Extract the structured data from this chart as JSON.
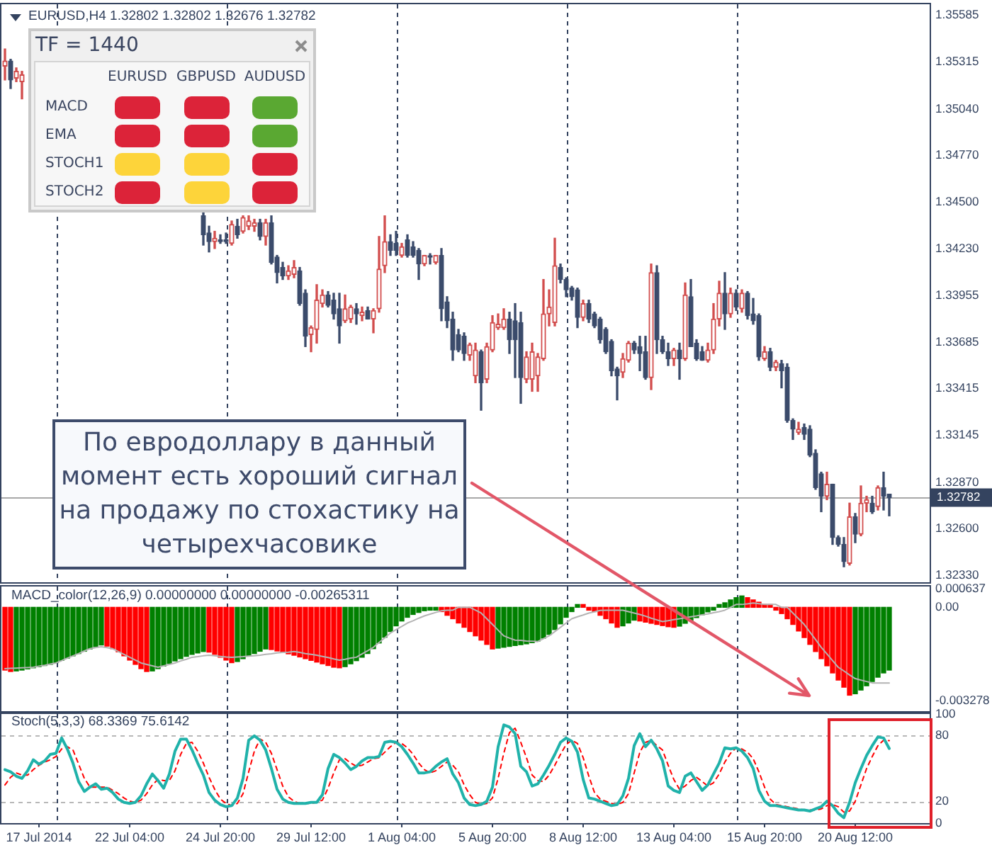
{
  "chart_data": [
    {
      "type": "candlestick",
      "title": "EURUSD,H4 1.32802 1.32802 1.32676 1.32782",
      "categories": [
        null,
        null,
        null,
        null,
        null,
        null,
        null,
        null,
        null,
        null,
        null,
        null,
        null,
        null,
        null,
        null,
        null,
        null,
        null,
        null,
        null,
        null,
        null,
        null,
        null,
        null,
        null,
        null,
        null,
        null,
        null,
        null,
        null,
        null,
        null,
        null,
        null,
        null,
        null,
        null,
        null,
        null,
        null,
        null,
        null,
        null,
        null,
        null,
        null,
        null,
        null,
        null,
        null,
        null,
        null,
        null,
        null,
        null,
        null,
        null,
        null,
        null,
        null,
        null,
        null,
        null,
        null,
        null,
        null,
        null,
        null,
        null,
        null,
        null,
        null,
        null,
        null,
        null,
        null,
        null,
        null,
        null,
        null,
        null,
        null,
        null,
        null,
        null,
        null,
        null,
        null,
        null,
        null,
        null,
        null,
        null,
        null,
        null,
        null,
        null,
        null,
        null,
        null,
        null,
        null,
        null,
        null,
        null,
        null,
        null,
        null,
        null,
        null,
        null,
        null,
        null,
        null,
        null,
        null,
        null,
        null,
        null,
        null,
        null,
        null,
        null,
        null,
        null,
        null,
        null,
        null,
        null,
        null,
        null,
        null,
        null,
        null,
        null,
        null,
        null,
        null,
        null,
        null,
        null,
        null,
        null,
        null,
        null,
        null,
        null,
        null,
        null,
        null,
        null,
        null,
        null,
        null
      ],
      "ohlc": [
        [
          1.3529,
          1.3539,
          1.3521,
          1.3532
        ],
        [
          1.3532,
          1.3533,
          1.3516,
          1.3521
        ],
        [
          1.3522,
          1.3528,
          1.352,
          1.3526
        ],
        [
          1.352,
          1.3526,
          1.351,
          1.3524
        ],
        null,
        null,
        null,
        null,
        null,
        null,
        null,
        null,
        null,
        null,
        null,
        null,
        null,
        null,
        null,
        null,
        null,
        null,
        null,
        null,
        null,
        null,
        null,
        null,
        null,
        null,
        null,
        null,
        null,
        null,
        null,
        [
          1.3442,
          1.3444,
          1.3425,
          1.3431
        ],
        [
          1.3432,
          1.3436,
          1.3421,
          1.3427
        ],
        [
          1.3427,
          1.3433,
          1.3423,
          1.3429
        ],
        [
          1.3428,
          1.3431,
          1.3426,
          1.3427
        ],
        [
          1.3428,
          1.3432,
          1.3426,
          1.3427
        ],
        [
          1.3426,
          1.3439,
          1.3425,
          1.3437
        ],
        [
          1.3436,
          1.344,
          1.3429,
          1.3431
        ],
        [
          1.3433,
          1.3442,
          1.3432,
          1.3441
        ],
        [
          1.3436,
          1.3442,
          1.3434,
          1.3439
        ],
        [
          1.3436,
          1.344,
          1.3433,
          1.3438
        ],
        [
          1.3438,
          1.344,
          1.3428,
          1.343
        ],
        [
          1.343,
          1.344,
          1.3425,
          1.3438
        ],
        [
          1.3438,
          1.3442,
          1.3414,
          1.3415
        ],
        [
          1.3418,
          1.3419,
          1.3403,
          1.3409
        ],
        [
          1.3412,
          1.3415,
          1.3405,
          1.3407
        ],
        [
          1.3407,
          1.3413,
          1.3405,
          1.341
        ],
        [
          1.3408,
          1.3416,
          1.3406,
          1.3412
        ],
        [
          1.341,
          1.3412,
          1.339,
          1.3391
        ],
        [
          1.3397,
          1.3399,
          1.3366,
          1.3372
        ],
        [
          1.3373,
          1.3378,
          1.3363,
          1.3377
        ],
        [
          1.3376,
          1.3402,
          1.3368,
          1.3393
        ],
        [
          1.3391,
          1.3399,
          1.3389,
          1.3396
        ],
        [
          1.3396,
          1.3398,
          1.3389,
          1.339
        ],
        [
          1.3393,
          1.3397,
          1.3382,
          1.3385
        ],
        [
          1.3388,
          1.3397,
          1.3368,
          1.3378
        ],
        [
          1.3381,
          1.3396,
          1.338,
          1.3388
        ],
        [
          1.3382,
          1.339,
          1.338,
          1.3389
        ],
        [
          1.3388,
          1.3391,
          1.3379,
          1.3385
        ],
        [
          1.3384,
          1.3389,
          1.3381,
          1.3386
        ],
        [
          1.3387,
          1.3389,
          1.3382,
          1.3382
        ],
        [
          1.3382,
          1.3388,
          1.3374,
          1.3387
        ],
        [
          1.3388,
          1.343,
          1.3386,
          1.3411
        ],
        [
          1.3413,
          1.3442,
          1.3409,
          1.3427
        ],
        [
          1.3427,
          1.3431,
          1.3419,
          1.3422
        ],
        [
          1.3426,
          1.3433,
          1.3419,
          1.3422
        ],
        [
          1.3419,
          1.3426,
          1.3418,
          1.3424
        ],
        [
          1.3428,
          1.3431,
          1.3418,
          1.3419
        ],
        [
          1.3424,
          1.3427,
          1.3418,
          1.3419
        ],
        [
          1.3422,
          1.3423,
          1.3405,
          1.3414
        ],
        [
          1.3414,
          1.3419,
          1.3413,
          1.3419
        ],
        [
          1.3418,
          1.342,
          1.3414,
          1.3418
        ],
        [
          1.3415,
          1.3419,
          1.3414,
          1.3419
        ],
        [
          1.3419,
          1.3423,
          1.3381,
          1.3388
        ],
        [
          1.3392,
          1.3395,
          1.3377,
          1.3381
        ],
        [
          1.3382,
          1.3386,
          1.3358,
          1.3364
        ],
        [
          1.3373,
          1.3376,
          1.3363,
          1.3364
        ],
        [
          1.3372,
          1.3374,
          1.3358,
          1.3362
        ],
        [
          1.3361,
          1.3368,
          1.3358,
          1.3367
        ],
        [
          1.3349,
          1.3368,
          1.3345,
          1.3364
        ],
        [
          1.3363,
          1.3364,
          1.3329,
          1.3345
        ],
        [
          1.3347,
          1.3368,
          1.3345,
          1.3366
        ],
        [
          1.3364,
          1.3384,
          1.3363,
          1.338
        ],
        [
          1.3377,
          1.3385,
          1.3376,
          1.3379
        ],
        [
          1.3377,
          1.3388,
          1.3376,
          1.3382
        ],
        [
          1.3382,
          1.3386,
          1.3362,
          1.337
        ],
        [
          1.3381,
          1.3391,
          1.3348,
          1.337
        ],
        [
          1.338,
          1.3386,
          1.3333,
          1.3348
        ],
        [
          1.3347,
          1.3363,
          1.3345,
          1.336
        ],
        [
          1.3347,
          1.3368,
          1.334,
          1.3363
        ],
        [
          1.3349,
          1.3362,
          1.334,
          1.336
        ],
        [
          1.3359,
          1.3405,
          1.3358,
          1.3385
        ],
        [
          1.3385,
          1.3399,
          1.3378,
          1.3389
        ],
        [
          1.338,
          1.3429,
          1.3378,
          1.3413
        ],
        [
          1.3412,
          1.3414,
          1.3403,
          1.3405
        ],
        [
          1.3405,
          1.3406,
          1.3395,
          1.3399
        ],
        [
          1.34,
          1.3401,
          1.3393,
          1.3395
        ],
        [
          1.3399,
          1.34,
          1.3377,
          1.3383
        ],
        [
          1.3383,
          1.3393,
          1.3381,
          1.3391
        ],
        [
          1.3391,
          1.3393,
          1.338,
          1.3382
        ],
        [
          1.3385,
          1.3386,
          1.3377,
          1.3378
        ],
        [
          1.3382,
          1.3383,
          1.3368,
          1.337
        ],
        [
          1.3376,
          1.3377,
          1.3362,
          1.3363
        ],
        [
          1.3369,
          1.337,
          1.3349,
          1.3352
        ],
        [
          1.3353,
          1.3354,
          1.3335,
          1.3349
        ],
        [
          1.3351,
          1.3362,
          1.3348,
          1.3359
        ],
        [
          1.3358,
          1.3369,
          1.3357,
          1.3368
        ],
        [
          1.3368,
          1.3369,
          1.3362,
          1.3364
        ],
        [
          1.3366,
          1.3372,
          1.3352,
          1.3362
        ],
        [
          1.3363,
          1.3372,
          1.3347,
          1.3348
        ],
        [
          1.3348,
          1.3414,
          1.3341,
          1.3409
        ],
        [
          1.3409,
          1.3413,
          1.3362,
          1.337
        ],
        [
          1.337,
          1.3372,
          1.3362,
          1.3363
        ],
        [
          1.3363,
          1.3368,
          1.3355,
          1.3359
        ],
        [
          1.3359,
          1.3365,
          1.3355,
          1.3364
        ],
        [
          1.3364,
          1.3368,
          1.3347,
          1.3359
        ],
        [
          1.3359,
          1.3403,
          1.3358,
          1.3396
        ],
        [
          1.3395,
          1.3405,
          1.3366,
          1.3366
        ],
        [
          1.3368,
          1.337,
          1.3358,
          1.3359
        ],
        [
          1.3363,
          1.3366,
          1.3358,
          1.3358
        ],
        [
          1.3358,
          1.3368,
          1.3357,
          1.3364
        ],
        [
          1.3364,
          1.3391,
          1.3362,
          1.3382
        ],
        [
          1.3382,
          1.3404,
          1.3378,
          1.3397
        ],
        [
          1.3397,
          1.3409,
          1.3376,
          1.3385
        ],
        [
          1.3385,
          1.34,
          1.3383,
          1.3397
        ],
        [
          1.3397,
          1.3399,
          1.3387,
          1.3389
        ],
        [
          1.3388,
          1.3399,
          1.3386,
          1.3397
        ],
        [
          1.3397,
          1.3398,
          1.3382,
          1.3384
        ],
        [
          1.3385,
          1.3394,
          1.3379,
          1.3381
        ],
        [
          1.3384,
          1.3385,
          1.3358,
          1.336
        ],
        [
          1.3359,
          1.3366,
          1.3358,
          1.3363
        ],
        [
          1.3363,
          1.3365,
          1.3352,
          1.3354
        ],
        [
          1.3354,
          1.3358,
          1.3352,
          1.3357
        ],
        [
          1.3356,
          1.3358,
          1.3342,
          1.3352
        ],
        [
          1.3354,
          1.3356,
          1.3322,
          1.3323
        ],
        [
          1.3323,
          1.3324,
          1.3312,
          1.3318
        ],
        [
          1.3316,
          1.3322,
          1.3315,
          1.3318
        ],
        [
          1.3319,
          1.3321,
          1.3312,
          1.3315
        ],
        [
          1.3318,
          1.332,
          1.3302,
          1.3303
        ],
        [
          1.3304,
          1.3306,
          1.3283,
          1.3284
        ],
        [
          1.3292,
          1.3293,
          1.327,
          1.3279
        ],
        [
          1.3279,
          1.3293,
          1.3277,
          1.3286
        ],
        [
          1.3286,
          1.3286,
          1.3251,
          1.3255
        ],
        [
          1.3255,
          1.3256,
          1.325,
          1.3251
        ],
        [
          1.3251,
          1.3255,
          1.3238,
          1.3241
        ],
        [
          1.324,
          1.3275,
          1.3239,
          1.3267
        ],
        [
          1.3267,
          1.3269,
          1.3252,
          1.3257
        ],
        [
          1.3257,
          1.3285,
          1.3256,
          1.3275
        ],
        [
          1.3275,
          1.3279,
          1.327,
          1.3277
        ],
        [
          1.3275,
          1.3279,
          1.3269,
          1.327
        ],
        [
          1.3273,
          1.3285,
          1.3271,
          1.3284
        ],
        [
          1.3284,
          1.3293,
          1.3271,
          1.3279
        ],
        [
          1.32802,
          1.32802,
          1.32676,
          1.32782
        ]
      ],
      "colors": [
        "#d24d4d",
        "#3b4b6b",
        "#d24d4d",
        "#d24d4d",
        null,
        null,
        null,
        null,
        null,
        null,
        null,
        null,
        null,
        null,
        null,
        null,
        null,
        null,
        null,
        null,
        null,
        null,
        null,
        null,
        null,
        null,
        null,
        null,
        null,
        null,
        null,
        null,
        null,
        null,
        null,
        "#3b4b6b",
        "#3b4b6b",
        "#d24d4d",
        "#3b4b6b",
        "#3b4b6b",
        "#d24d4d",
        "#3b4b6b",
        "#d24d4d",
        "#d24d4d",
        "#d24d4d",
        "#3b4b6b",
        "#d24d4d",
        "#3b4b6b",
        "#3b4b6b",
        "#3b4b6b",
        "#d24d4d",
        "#d24d4d",
        "#3b4b6b",
        "#3b4b6b",
        "#d24d4d",
        "#d24d4d",
        "#d24d4d",
        "#3b4b6b",
        "#3b4b6b",
        "#3b4b6b",
        "#d24d4d",
        "#d24d4d",
        "#3b4b6b",
        "#d24d4d",
        "#3b4b6b",
        "#d24d4d",
        "#d24d4d",
        "#d24d4d",
        "#3b4b6b",
        "#3b4b6b",
        "#d24d4d",
        "#3b4b6b",
        "#3b4b6b",
        "#3b4b6b",
        "#d24d4d",
        "#3b4b6b",
        "#d24d4d",
        "#3b4b6b",
        "#3b4b6b",
        "#3b4b6b",
        "#3b4b6b",
        "#3b4b6b",
        "#d24d4d",
        "#d24d4d",
        "#3b4b6b",
        "#d24d4d",
        "#d24d4d",
        "#d24d4d",
        "#d24d4d",
        "#3b4b6b",
        "#3b4b6b",
        "#3b4b6b",
        "#d24d4d",
        "#d24d4d",
        "#d24d4d",
        "#d24d4d",
        "#d24d4d",
        "#d24d4d",
        "#3b4b6b",
        "#3b4b6b",
        "#3b4b6b",
        "#3b4b6b",
        "#d24d4d",
        "#3b4b6b",
        "#3b4b6b",
        "#3b4b6b",
        "#3b4b6b",
        "#3b4b6b",
        "#3b4b6b",
        "#d24d4d",
        "#d24d4d",
        "#3b4b6b",
        "#3b4b6b",
        "#3b4b6b",
        "#d24d4d",
        "#3b4b6b",
        "#3b4b6b",
        "#3b4b6b",
        "#d24d4d",
        "#3b4b6b",
        "#d24d4d",
        "#3b4b6b",
        "#3b4b6b",
        "#3b4b6b",
        "#d24d4d",
        "#d24d4d",
        "#d24d4d",
        "#3b4b6b",
        "#d24d4d",
        "#3b4b6b",
        "#d24d4d",
        "#3b4b6b",
        "#3b4b6b",
        "#3b4b6b",
        "#d24d4d",
        "#3b4b6b",
        "#d24d4d",
        "#3b4b6b",
        "#3b4b6b",
        "#3b4b6b",
        "#d24d4d",
        "#3b4b6b",
        "#3b4b6b",
        "#3b4b6b",
        "#3b4b6b",
        "#d24d4d",
        "#3b4b6b",
        "#3b4b6b",
        "#3b4b6b",
        "#d24d4d",
        "#3b4b6b",
        "#d24d4d",
        "#d24d4d",
        "#3b4b6b",
        "#d24d4d",
        "#3b4b6b",
        "#3b4b6b"
      ],
      "ylim": [
        1.3229,
        1.3565
      ],
      "yticks": [
        {
          "value": 1.3233,
          "label": "1.32330"
        },
        {
          "value": 1.326,
          "label": "1.32600"
        },
        {
          "value": 1.3287,
          "label": "1.32870"
        },
        1.33145,
        1.33415,
        1.33685,
        1.33955,
        {
          "value": 1.3423,
          "label": "1.34230"
        },
        {
          "value": 1.345,
          "label": "1.34500"
        },
        {
          "value": 1.3477,
          "label": "1.34770"
        },
        {
          "value": 1.3504,
          "label": "1.35040"
        },
        1.35315,
        1.35585
      ],
      "ref_lines": [
        {
          "axis": "y",
          "value": 1.32782,
          "label": "1.32782",
          "color": "#a8a8a8"
        }
      ],
      "annotations": [
        "По евродоллару в данный момент есть хороший сигнал на продажу по стохастику на четырехчасовике"
      ]
    },
    {
      "type": "other",
      "title": "TF = 1440",
      "categories": [
        "EURUSD",
        "GBPUSD",
        "AUDUSD"
      ],
      "y_categories": [
        "MACD",
        "EMA",
        "STOCH1",
        "STOCH2"
      ],
      "colors": [
        "#dc2339",
        "#dc2339",
        "#5aa832",
        "#dc2339",
        "#dc2339",
        "#5aa832",
        "#fdd43a",
        "#fdd43a",
        "#dc2339",
        "#dc2339",
        "#fdd43a",
        "#dc2339"
      ]
    },
    {
      "type": "bar",
      "title": "MACD_color(12,26,9) 0.00000000 0.00000000 -0.00265311",
      "categories": [
        null,
        null,
        null,
        null,
        null,
        null,
        null,
        null,
        null,
        null,
        null,
        null,
        null,
        null,
        null,
        null,
        null,
        null,
        null,
        null,
        null,
        null,
        null,
        null,
        null,
        null,
        null,
        null,
        null,
        null,
        null,
        null,
        null,
        null,
        null,
        null,
        null,
        null,
        null,
        null,
        null,
        null,
        null,
        null,
        null,
        null,
        null,
        null,
        null,
        null,
        null,
        null,
        null,
        null,
        null,
        null,
        null,
        null,
        null,
        null,
        null,
        null,
        null,
        null,
        null,
        null,
        null,
        null,
        null,
        null,
        null,
        null,
        null,
        null,
        null,
        null,
        null,
        null,
        null,
        null,
        null,
        null,
        null,
        null,
        null,
        null,
        null,
        null,
        null,
        null,
        null,
        null,
        null,
        null,
        null,
        null,
        null,
        null,
        null,
        null,
        null,
        null,
        null,
        null,
        null,
        null,
        null,
        null,
        null,
        null,
        null,
        null,
        null,
        null,
        null,
        null,
        null,
        null,
        null,
        null,
        null,
        null,
        null,
        null,
        null,
        null,
        null,
        null,
        null,
        null,
        null,
        null,
        null,
        null,
        null,
        null,
        null,
        null,
        null,
        null,
        null,
        null,
        null,
        null,
        null,
        null,
        null,
        null,
        null,
        null,
        null,
        null,
        null,
        null,
        null,
        null,
        null
      ],
      "series": [
        {
          "values": [
            -0.0022,
            -0.00225,
            -0.00223,
            -0.0022,
            -0.00216,
            -0.00212,
            -0.00208,
            -0.00204,
            -0.002,
            -0.00194,
            -0.00186,
            -0.00178,
            -0.0017,
            -0.00162,
            -0.00154,
            -0.00146,
            -0.00138,
            -0.00132,
            -0.00136,
            -0.00145,
            -0.00156,
            -0.0017,
            -0.00185,
            -0.002,
            -0.00215,
            -0.00225,
            -0.00223,
            -0.00215,
            -0.00206,
            -0.00197,
            -0.00188,
            -0.0018,
            -0.00172,
            -0.00165,
            -0.0016,
            -0.00155,
            -0.00157,
            -0.00165,
            -0.00175,
            -0.00185,
            -0.00194,
            -0.0019,
            -0.0018,
            -0.0017,
            -0.00162,
            -0.00154,
            -0.00146,
            -0.00148,
            -0.00153,
            -0.00158,
            -0.00163,
            -0.00168,
            -0.00174,
            -0.0018,
            -0.00186,
            -0.00192,
            -0.00198,
            -0.00204,
            -0.0021,
            -0.00212,
            -0.00208,
            -0.00198,
            -0.00187,
            -0.00175,
            -0.00162,
            -0.00145,
            -0.00125,
            -0.00105,
            -0.00085,
            -0.00065,
            -0.00048,
            -0.00035,
            -0.00025,
            -0.00018,
            -0.00012,
            -0.0001,
            -0.0001,
            -0.00015,
            -0.00028,
            -0.0004,
            -0.00055,
            -0.0007,
            -0.00085,
            -0.001,
            -0.00115,
            -0.0013,
            -0.00146,
            -0.00143,
            -0.0014,
            -0.00137,
            -0.00134,
            -0.00131,
            -0.00128,
            -0.00124,
            -0.00118,
            -0.00108,
            -0.00095,
            -0.00078,
            -0.00058,
            -0.00035,
            -0.00015,
            0.0001,
            0.0001,
            -0.0001,
            -0.00015,
            -0.00028,
            -0.0004,
            -0.00055,
            -0.0007,
            -0.00065,
            -0.00055,
            -0.00045,
            -0.00048,
            -0.00052,
            -0.00056,
            -0.0006,
            -0.00064,
            -0.00068,
            -0.0007,
            -0.00066,
            -0.00056,
            -0.00046,
            -0.00036,
            -0.00026,
            -0.00016,
            -0.0001,
            0.0001,
            0.00016,
            0.00026,
            0.00034,
            0.0004,
            0.00034,
            0.00026,
            0.00018,
            0.0001,
            0.0001,
            -0.0001,
            -0.00022,
            -0.0004,
            -0.0006,
            -0.00083,
            -0.00106,
            -0.0013,
            -0.00155,
            -0.0018,
            -0.00205,
            -0.0023,
            -0.00255,
            -0.0028,
            -0.00308,
            -0.00303,
            -0.0029,
            -0.00275,
            -0.0026,
            -0.00245,
            -0.0023,
            -0.0022
          ],
          "colors": [
            "#ff0000",
            "#ff0000",
            "#008000",
            "#008000",
            "#008000",
            "#008000",
            "#008000",
            "#008000",
            "#008000",
            "#008000",
            "#008000",
            "#008000",
            "#008000",
            "#008000",
            "#008000",
            "#008000",
            "#008000",
            "#008000",
            "#ff0000",
            "#ff0000",
            "#ff0000",
            "#ff0000",
            "#ff0000",
            "#ff0000",
            "#ff0000",
            "#ff0000",
            "#008000",
            "#008000",
            "#008000",
            "#008000",
            "#008000",
            "#008000",
            "#008000",
            "#008000",
            "#008000",
            "#008000",
            "#ff0000",
            "#ff0000",
            "#ff0000",
            "#ff0000",
            "#ff0000",
            "#008000",
            "#008000",
            "#008000",
            "#008000",
            "#008000",
            "#008000",
            "#ff0000",
            "#ff0000",
            "#ff0000",
            "#ff0000",
            "#ff0000",
            "#ff0000",
            "#ff0000",
            "#ff0000",
            "#ff0000",
            "#ff0000",
            "#ff0000",
            "#ff0000",
            "#ff0000",
            "#008000",
            "#008000",
            "#008000",
            "#008000",
            "#008000",
            "#008000",
            "#008000",
            "#008000",
            "#008000",
            "#008000",
            "#008000",
            "#008000",
            "#008000",
            "#008000",
            "#008000",
            "#008000",
            "#008000",
            "#ff0000",
            "#ff0000",
            "#ff0000",
            "#ff0000",
            "#ff0000",
            "#ff0000",
            "#ff0000",
            "#ff0000",
            "#ff0000",
            "#ff0000",
            "#008000",
            "#008000",
            "#008000",
            "#008000",
            "#008000",
            "#008000",
            "#008000",
            "#008000",
            "#008000",
            "#008000",
            "#008000",
            "#008000",
            "#008000",
            "#008000",
            "#008000",
            "#ff0000",
            "#ff0000",
            "#ff0000",
            "#ff0000",
            "#ff0000",
            "#ff0000",
            "#ff0000",
            "#008000",
            "#008000",
            "#008000",
            "#ff0000",
            "#ff0000",
            "#ff0000",
            "#ff0000",
            "#ff0000",
            "#ff0000",
            "#ff0000",
            "#008000",
            "#008000",
            "#008000",
            "#008000",
            "#008000",
            "#008000",
            "#008000",
            "#008000",
            "#008000",
            "#008000",
            "#008000",
            "#008000",
            "#ff0000",
            "#ff0000",
            "#ff0000",
            "#ff0000",
            "#ff0000",
            "#ff0000",
            "#ff0000",
            "#ff0000",
            "#ff0000",
            "#ff0000",
            "#ff0000",
            "#ff0000",
            "#ff0000",
            "#ff0000",
            "#ff0000",
            "#ff0000",
            "#ff0000",
            "#ff0000",
            "#ff0000",
            "#008000",
            "#008000",
            "#008000",
            "#008000",
            "#008000",
            "#008000",
            "#008000"
          ]
        },
        {
          "type": "line",
          "color": "#b4b4b4",
          "values": [
            -0.00215,
            -0.00214,
            -0.00213,
            -0.00212,
            -0.00211,
            -0.0021,
            -0.00206,
            -0.00203,
            -0.00199,
            -0.00195,
            -0.00187,
            -0.00178,
            -0.0017,
            -0.00162,
            -0.00153,
            -0.00145,
            -0.00141,
            -0.00138,
            -0.00141,
            -0.00145,
            -0.00155,
            -0.00165,
            -0.00175,
            -0.00185,
            -0.00195,
            -0.002,
            -0.00205,
            -0.0021,
            -0.00205,
            -0.002,
            -0.00195,
            -0.00188,
            -0.00182,
            -0.00175,
            -0.00173,
            -0.0017,
            -0.00168,
            -0.0017,
            -0.00172,
            -0.00174,
            -0.00175,
            -0.00174,
            -0.00173,
            -0.00171,
            -0.0017,
            -0.00168,
            -0.00165,
            -0.00163,
            -0.0016,
            -0.00158,
            -0.00157,
            -0.00155,
            -0.00158,
            -0.00162,
            -0.00165,
            -0.00168,
            -0.00172,
            -0.00176,
            -0.00181,
            -0.00185,
            -0.00182,
            -0.00178,
            -0.00175,
            -0.00163,
            -0.00152,
            -0.0014,
            -0.00123,
            -0.00107,
            -0.0009,
            -0.00078,
            -0.00067,
            -0.00055,
            -0.00047,
            -0.00038,
            -0.0003,
            -0.00024,
            -0.00018,
            -0.00012,
            -0.0001,
            -0.0001,
            0,
            0,
            0,
            -0.0001,
            -0.0002,
            -0.0004,
            -0.0006,
            -0.0008,
            -0.001,
            -0.00108,
            -0.00115,
            -0.00116,
            -0.00118,
            -0.00119,
            -0.0012,
            -0.0011,
            -0.001,
            -0.00085,
            -0.0007,
            -0.00055,
            -0.0004,
            -0.00033,
            -0.00027,
            -0.0002,
            -0.00016,
            -0.00011,
            -0.0001,
            -0.0001,
            -0.0001,
            -0.0001,
            -0.00015,
            -0.0002,
            -0.00025,
            -0.00031,
            -0.00038,
            -0.00044,
            -0.0005,
            -0.00047,
            -0.00043,
            -0.0004,
            -0.00037,
            -0.00033,
            -0.0003,
            -0.00026,
            -0.00023,
            -0.00019,
            -0.00015,
            -0.0001,
            0,
            0.0001,
            0.0001,
            0.00012,
            0.00015,
            0.00013,
            0.0001,
            0.0001,
            0.0001,
            0,
            0,
            -0.0002,
            -0.0004,
            -0.0006,
            -0.00087,
            -0.00113,
            -0.0014,
            -0.00163,
            -0.00187,
            -0.0021,
            -0.00223,
            -0.00237,
            -0.0025,
            -0.00255,
            -0.0026,
            -0.00265,
            -0.00265,
            -0.00265,
            -0.00265311
          ]
        }
      ],
      "ylim": [
        -0.00364,
        0.00073
      ],
      "yticks": [
        -0.003278,
        {
          "value": 0,
          "label": "0.00"
        },
        0.000637
      ]
    },
    {
      "type": "line",
      "title": "Stoch(5,3,3) 68.3369 75.6142",
      "categories": [
        null,
        null,
        null,
        null,
        null,
        null,
        "17 Jul 2014",
        null,
        null,
        null,
        null,
        null,
        null,
        null,
        null,
        null,
        null,
        null,
        null,
        null,
        null,
        null,
        "22 Jul 04:00",
        null,
        null,
        null,
        null,
        null,
        null,
        null,
        null,
        null,
        null,
        null,
        null,
        null,
        null,
        null,
        "24 Jul 20:00",
        null,
        null,
        null,
        null,
        null,
        null,
        null,
        null,
        null,
        null,
        null,
        null,
        null,
        null,
        null,
        "29 Jul 12:00",
        null,
        null,
        null,
        null,
        null,
        null,
        null,
        null,
        null,
        null,
        null,
        null,
        null,
        null,
        null,
        "1 Aug 04:00",
        null,
        null,
        null,
        null,
        null,
        null,
        null,
        null,
        null,
        null,
        null,
        null,
        null,
        null,
        null,
        "5 Aug 20:00",
        null,
        null,
        null,
        null,
        null,
        null,
        null,
        null,
        null,
        null,
        null,
        null,
        null,
        null,
        null,
        "8 Aug 12:00",
        null,
        null,
        null,
        null,
        null,
        null,
        null,
        null,
        null,
        null,
        null,
        null,
        null,
        null,
        null,
        "13 Aug 04:00",
        null,
        null,
        null,
        null,
        null,
        null,
        null,
        null,
        null,
        null,
        null,
        null,
        null,
        null,
        null,
        "15 Aug 20:00",
        null,
        null,
        null,
        null,
        null,
        null,
        null,
        null,
        null,
        null,
        null,
        null,
        null,
        null,
        null,
        "20 Aug 12:00",
        null,
        null,
        null,
        null,
        null,
        null
      ],
      "series": [
        {
          "color": "#20b2aa",
          "values": [
            49,
            47,
            43,
            41,
            48,
            58,
            54,
            57,
            63,
            64,
            78,
            68,
            55,
            38,
            29,
            33,
            36,
            31,
            32,
            28,
            22,
            19,
            18,
            19,
            25,
            36,
            45,
            39,
            32,
            45,
            66,
            77,
            77,
            67,
            55,
            44,
            28,
            21,
            17,
            15,
            16,
            23,
            41,
            76,
            80,
            76,
            67,
            50,
            31,
            22,
            19,
            18,
            18,
            18,
            19,
            19,
            26,
            50,
            63,
            60,
            55,
            49,
            52,
            57,
            60,
            60,
            61,
            74,
            75,
            74,
            70,
            63,
            55,
            46,
            46,
            47,
            52,
            56,
            59,
            45,
            37,
            23,
            17,
            16,
            17,
            20,
            33,
            70,
            90,
            88,
            82,
            52,
            47,
            34,
            36,
            44,
            53,
            63,
            74,
            78,
            75,
            65,
            40,
            23,
            22,
            20,
            18,
            16,
            17,
            25,
            41,
            71,
            82,
            70,
            76,
            68,
            57,
            34,
            30,
            28,
            43,
            46,
            38,
            30,
            35,
            45,
            55,
            69,
            68,
            69,
            66,
            60,
            50,
            30,
            20,
            16,
            16,
            15,
            14,
            13,
            12,
            12,
            11,
            13,
            15,
            20,
            16,
            9,
            5,
            19,
            37,
            50,
            62,
            71,
            79,
            78,
            68.3369
          ]
        },
        {
          "color": "#ff0000",
          "line_style": "dashed",
          "values": [
            35,
            42,
            46,
            44,
            44,
            49,
            53,
            56,
            58,
            61,
            68,
            70,
            67,
            54,
            41,
            33,
            33,
            33,
            33,
            30,
            27,
            23,
            20,
            19,
            21,
            27,
            35,
            40,
            39,
            39,
            48,
            63,
            73,
            74,
            66,
            55,
            42,
            31,
            22,
            18,
            16,
            18,
            27,
            47,
            66,
            77,
            74,
            64,
            49,
            34,
            24,
            20,
            18,
            18,
            18,
            19,
            21,
            32,
            46,
            58,
            59,
            55,
            52,
            53,
            56,
            59,
            60,
            65,
            70,
            74,
            73,
            69,
            63,
            55,
            49,
            46,
            48,
            52,
            56,
            53,
            47,
            35,
            26,
            19,
            17,
            18,
            23,
            41,
            64,
            83,
            87,
            74,
            60,
            44,
            39,
            38,
            44,
            53,
            63,
            72,
            76,
            73,
            60,
            43,
            28,
            22,
            20,
            18,
            17,
            19,
            27,
            46,
            65,
            74,
            76,
            71,
            67,
            53,
            40,
            31,
            34,
            39,
            42,
            38,
            34,
            37,
            45,
            56,
            64,
            69,
            68,
            65,
            59,
            47,
            33,
            22,
            17,
            16,
            15,
            14,
            13,
            12,
            12,
            12,
            13,
            16,
            17,
            15,
            10,
            11,
            20,
            35,
            50,
            61,
            71,
            76,
            75.6142
          ]
        }
      ],
      "ylim": [
        0,
        100
      ],
      "yticks": [
        0,
        20,
        80,
        100
      ],
      "ref_lines": [
        {
          "axis": "y",
          "value": 80,
          "color": "#b8b8b8",
          "line_style": "dashed"
        },
        {
          "axis": "y",
          "value": 20,
          "color": "#b8b8b8",
          "line_style": "dashed"
        }
      ]
    }
  ]
}
